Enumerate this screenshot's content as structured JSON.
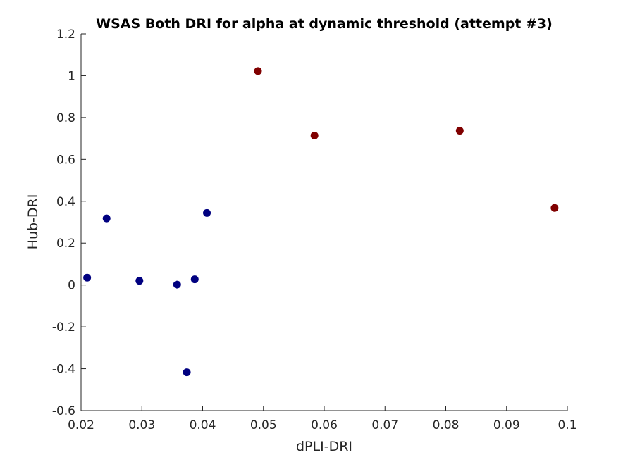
{
  "chart_data": {
    "type": "scatter",
    "title": "WSAS Both DRI for alpha at dynamic threshold (attempt #3)",
    "xlabel": "dPLI-DRI",
    "ylabel": "Hub-DRI",
    "xlim": [
      0.02,
      0.1
    ],
    "ylim": [
      -0.6,
      1.2
    ],
    "xticks": [
      0.02,
      0.03,
      0.04,
      0.05,
      0.06,
      0.07,
      0.08,
      0.09,
      0.1
    ],
    "xtick_labels": [
      "0.02",
      "0.03",
      "0.04",
      "0.05",
      "0.06",
      "0.07",
      "0.08",
      "0.09",
      "0.1"
    ],
    "yticks": [
      -0.6,
      -0.4,
      -0.2,
      0,
      0.2,
      0.4,
      0.6,
      0.8,
      1,
      1.2
    ],
    "ytick_labels": [
      "-0.6",
      "-0.4",
      "-0.2",
      "0",
      "0.2",
      "0.4",
      "0.6",
      "0.8",
      "1",
      "1.2"
    ],
    "grid": false,
    "series": [
      {
        "color": "#000080",
        "points": [
          {
            "x": 0.021,
            "y": 0.035
          },
          {
            "x": 0.0242,
            "y": 0.318
          },
          {
            "x": 0.0296,
            "y": 0.02
          },
          {
            "x": 0.0358,
            "y": 0.002
          },
          {
            "x": 0.0374,
            "y": -0.417
          },
          {
            "x": 0.0387,
            "y": 0.027
          },
          {
            "x": 0.0407,
            "y": 0.344
          }
        ]
      },
      {
        "color": "#800000",
        "points": [
          {
            "x": 0.0491,
            "y": 1.022
          },
          {
            "x": 0.0584,
            "y": 0.714
          },
          {
            "x": 0.0823,
            "y": 0.737
          },
          {
            "x": 0.0979,
            "y": 0.368
          }
        ]
      }
    ]
  }
}
